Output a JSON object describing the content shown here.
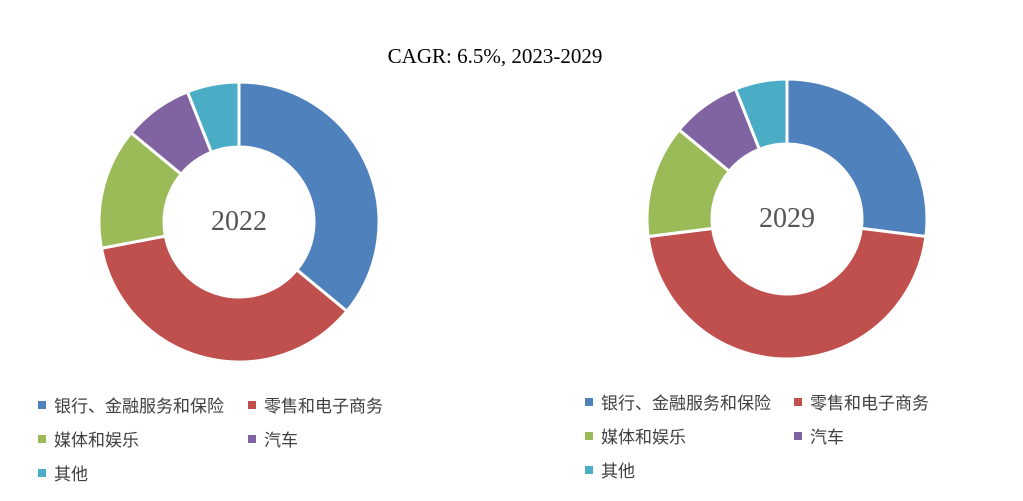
{
  "title": "CAGR: 6.5%, 2023-2029",
  "colors": {
    "banking": "#4F81BD",
    "retail": "#C0504D",
    "media": "#9BBB59",
    "auto": "#8064A2",
    "other": "#4BACC6"
  },
  "chart_data": [
    {
      "type": "pie",
      "variant": "donut",
      "center_label": "2022",
      "categories": [
        "银行、金融服务和保险",
        "零售和电子商务",
        "媒体和娱乐",
        "汽车",
        "其他"
      ],
      "values": [
        36,
        36,
        14,
        8,
        6
      ],
      "unit": "%",
      "legend": "bottom"
    },
    {
      "type": "pie",
      "variant": "donut",
      "center_label": "2029",
      "categories": [
        "银行、金融服务和保险",
        "零售和电子商务",
        "媒体和娱乐",
        "汽车",
        "其他"
      ],
      "values": [
        27,
        46,
        13,
        8,
        6
      ],
      "unit": "%",
      "legend": "bottom"
    }
  ]
}
